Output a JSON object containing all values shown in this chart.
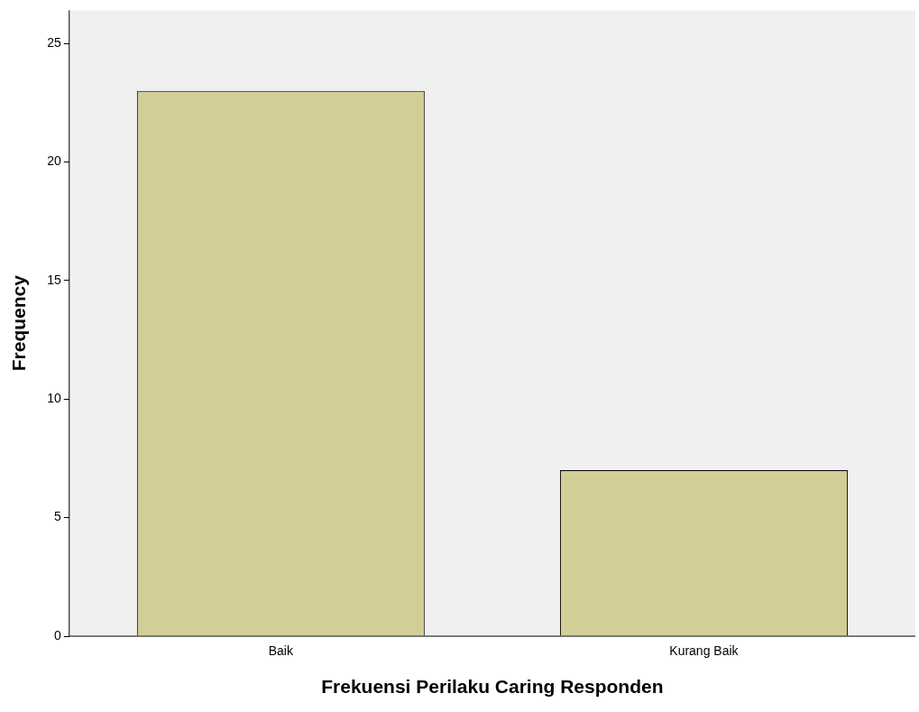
{
  "chart_data": {
    "type": "bar",
    "xlabel": "Frekuensi Perilaku Caring Responden",
    "ylabel": "Frequency",
    "categories": [
      "Baik",
      "Kurang Baik"
    ],
    "values": [
      23,
      7
    ],
    "color": "#d3ce97",
    "ylim": [
      0,
      26.4
    ],
    "yticks": [
      0,
      5,
      10,
      15,
      20,
      25
    ],
    "grid": false
  }
}
